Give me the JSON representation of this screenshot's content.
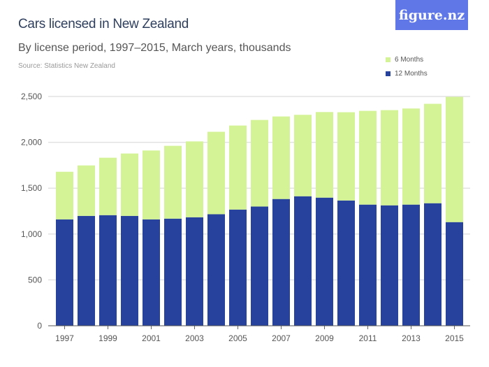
{
  "chart_data": {
    "type": "bar",
    "stacked": true,
    "title": "Cars licensed in New Zealand",
    "subtitle": "By license period, 1997–2015, March years, thousands",
    "source": "Source: Statistics New Zealand",
    "categories": [
      "1997",
      "1998",
      "1999",
      "2000",
      "2001",
      "2002",
      "2003",
      "2004",
      "2005",
      "2006",
      "2007",
      "2008",
      "2009",
      "2010",
      "2011",
      "2012",
      "2013",
      "2014",
      "2015"
    ],
    "x_tick_labels": [
      "1997",
      "1999",
      "2001",
      "2003",
      "2005",
      "2007",
      "2009",
      "2011",
      "2013",
      "2015"
    ],
    "series": [
      {
        "name": "12 Months",
        "color": "#27429c",
        "values": [
          1160,
          1198,
          1206,
          1198,
          1160,
          1168,
          1183,
          1216,
          1267,
          1300,
          1382,
          1412,
          1397,
          1366,
          1321,
          1313,
          1321,
          1336,
          1130
        ]
      },
      {
        "name": "6 Months",
        "color": "#d4f396",
        "values": [
          519,
          550,
          626,
          680,
          751,
          794,
          827,
          899,
          916,
          944,
          900,
          888,
          933,
          962,
          1022,
          1038,
          1048,
          1084,
          1366
        ]
      }
    ],
    "ylim": [
      0,
      2500
    ],
    "y_ticks": [
      0,
      500,
      1000,
      1500,
      2000,
      2500
    ],
    "y_tick_labels": [
      "0",
      "500",
      "1,000",
      "1,500",
      "2,000",
      "2,500"
    ],
    "grid": true,
    "legend_placement": "top-right"
  },
  "logo": "figure.nz"
}
